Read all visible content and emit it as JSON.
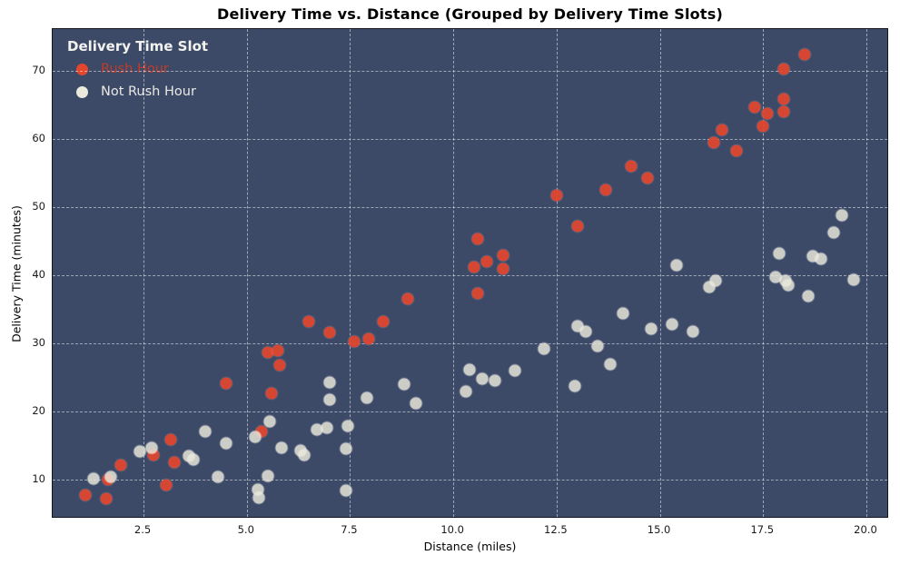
{
  "page": {
    "title": "Delivery Time vs. Distance (Grouped by Delivery Time Slots)"
  },
  "chart_data": {
    "type": "scatter",
    "title": "Delivery Time vs. Distance (Grouped by Delivery Time Slots)",
    "xlabel": "Distance (miles)",
    "ylabel": "Delivery Time (minutes)",
    "xlim": [
      0.3,
      20.55
    ],
    "ylim": [
      4.3,
      76.1
    ],
    "x_ticks": [
      2.5,
      5.0,
      7.5,
      10.0,
      12.5,
      15.0,
      17.5,
      20.0
    ],
    "x_tick_labels": [
      "2.5",
      "5.0",
      "7.5",
      "10.0",
      "12.5",
      "15.0",
      "17.5",
      "20.0"
    ],
    "y_ticks": [
      10,
      20,
      30,
      40,
      50,
      60,
      70
    ],
    "y_tick_labels": [
      "10",
      "20",
      "30",
      "40",
      "50",
      "60",
      "70"
    ],
    "grid": "dashed, white, on",
    "plot_background": "#3c4a68",
    "marker_size_px": 13,
    "legend": {
      "title": "Delivery Time Slot",
      "position": "upper left",
      "entries": [
        {
          "label": "Rush Hour",
          "marker_color": "#e2472e",
          "text_color": "#c23b28"
        },
        {
          "label": "Not Rush Hour",
          "marker_color": "#eceadd",
          "text_color": "#e9e9e3"
        }
      ]
    },
    "series": [
      {
        "name": "Rush Hour",
        "color": "#e2472e",
        "points": [
          [
            1.1,
            7.7
          ],
          [
            1.6,
            7.2
          ],
          [
            1.65,
            10.0
          ],
          [
            1.95,
            12.1
          ],
          [
            2.75,
            13.6
          ],
          [
            3.05,
            9.2
          ],
          [
            3.15,
            15.9
          ],
          [
            3.25,
            12.5
          ],
          [
            4.5,
            24.1
          ],
          [
            5.35,
            17.1
          ],
          [
            5.5,
            28.7
          ],
          [
            5.6,
            22.7
          ],
          [
            5.75,
            29.0
          ],
          [
            5.8,
            26.8
          ],
          [
            6.5,
            33.2
          ],
          [
            7.0,
            31.6
          ],
          [
            7.6,
            30.3
          ],
          [
            7.95,
            30.7
          ],
          [
            8.3,
            33.2
          ],
          [
            8.9,
            36.5
          ],
          [
            10.5,
            41.2
          ],
          [
            10.6,
            45.3
          ],
          [
            10.6,
            37.3
          ],
          [
            10.8,
            42.0
          ],
          [
            11.2,
            42.9
          ],
          [
            11.2,
            40.9
          ],
          [
            12.5,
            51.7
          ],
          [
            13.0,
            47.2
          ],
          [
            13.7,
            52.5
          ],
          [
            14.3,
            56.0
          ],
          [
            14.7,
            54.3
          ],
          [
            16.3,
            59.5
          ],
          [
            16.5,
            61.3
          ],
          [
            16.85,
            58.3
          ],
          [
            17.3,
            64.7
          ],
          [
            17.5,
            61.8
          ],
          [
            17.6,
            63.7
          ],
          [
            18.0,
            70.3
          ],
          [
            18.0,
            65.9
          ],
          [
            18.0,
            64.0
          ],
          [
            18.5,
            72.4
          ]
        ]
      },
      {
        "name": "Not Rush Hour",
        "color": "#eceadd",
        "points": [
          [
            1.3,
            10.15
          ],
          [
            1.7,
            10.4
          ],
          [
            2.4,
            14.2
          ],
          [
            2.7,
            14.7
          ],
          [
            3.6,
            13.5
          ],
          [
            3.7,
            12.9
          ],
          [
            4.0,
            17.1
          ],
          [
            4.3,
            10.4
          ],
          [
            4.5,
            15.4
          ],
          [
            5.2,
            16.3
          ],
          [
            5.27,
            8.5
          ],
          [
            5.3,
            7.3
          ],
          [
            5.5,
            10.5
          ],
          [
            5.55,
            18.5
          ],
          [
            5.85,
            14.7
          ],
          [
            6.3,
            14.3
          ],
          [
            6.4,
            13.6
          ],
          [
            6.7,
            17.4
          ],
          [
            6.95,
            17.6
          ],
          [
            7.0,
            24.3
          ],
          [
            7.0,
            21.7
          ],
          [
            7.45,
            17.9
          ],
          [
            7.4,
            14.6
          ],
          [
            7.4,
            8.4
          ],
          [
            7.9,
            22.0
          ],
          [
            8.8,
            24.0
          ],
          [
            9.1,
            21.2
          ],
          [
            10.3,
            23.0
          ],
          [
            10.4,
            26.1
          ],
          [
            10.7,
            24.8
          ],
          [
            11.0,
            24.6
          ],
          [
            11.5,
            26.0
          ],
          [
            12.2,
            29.2
          ],
          [
            12.95,
            23.8
          ],
          [
            13.0,
            32.5
          ],
          [
            13.2,
            31.7
          ],
          [
            13.5,
            29.6
          ],
          [
            13.8,
            27.0
          ],
          [
            14.1,
            34.4
          ],
          [
            14.8,
            32.1
          ],
          [
            15.3,
            32.8
          ],
          [
            15.4,
            41.5
          ],
          [
            15.8,
            31.7
          ],
          [
            16.2,
            38.3
          ],
          [
            16.35,
            39.2
          ],
          [
            17.8,
            39.8
          ],
          [
            17.9,
            43.2
          ],
          [
            18.05,
            39.2
          ],
          [
            18.1,
            38.5
          ],
          [
            18.6,
            36.9
          ],
          [
            18.7,
            42.8
          ],
          [
            18.9,
            42.4
          ],
          [
            19.2,
            46.2
          ],
          [
            19.4,
            48.8
          ],
          [
            19.7,
            39.3
          ]
        ]
      }
    ]
  }
}
